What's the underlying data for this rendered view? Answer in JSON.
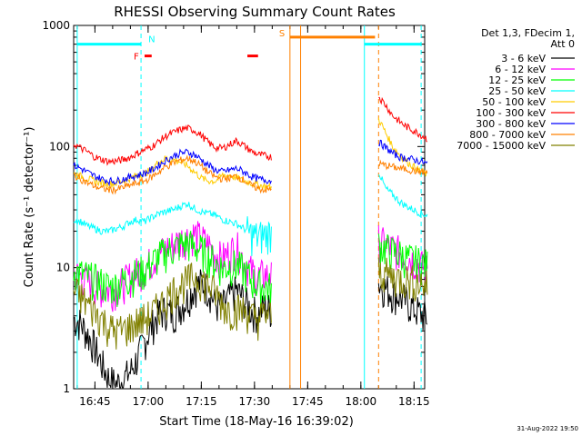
{
  "chart_data": {
    "type": "line",
    "title": "RHESSI Observing Summary Count Rates",
    "xlabel": "Start Time (18-May-16 16:39:02)",
    "ylabel": "Count Rate (s⁻¹ detector⁻¹)",
    "yscale": "log",
    "ylim": [
      1,
      1000
    ],
    "xlim": [
      "16:39",
      "18:18"
    ],
    "x_ticks": [
      "16:45",
      "17:00",
      "17:15",
      "17:30",
      "17:45",
      "18:00",
      "18:15"
    ],
    "y_ticks": [
      "1",
      "10",
      "100",
      "1000"
    ],
    "grid": false,
    "legend_position": "right",
    "legend_header": [
      "Det 1,3, FDecim 1,",
      "Att 0"
    ],
    "x_minutes": [
      39,
      41,
      43,
      45,
      47,
      49,
      51,
      53,
      55,
      57,
      59,
      61,
      63,
      65,
      67,
      69,
      71,
      73,
      75,
      77,
      79,
      81,
      83,
      85,
      87,
      89,
      91,
      93,
      95,
      97,
      99,
      101,
      103,
      105,
      107,
      109,
      111,
      113,
      115,
      117,
      119,
      121,
      123,
      125,
      127,
      129,
      131,
      133,
      135,
      137,
      139
    ],
    "series": [
      {
        "name": "3 - 6 keV",
        "color": "#000000",
        "values": [
          3.8,
          3.5,
          2.8,
          2.2,
          1.6,
          1.2,
          1.1,
          1.2,
          1.4,
          1.8,
          2.5,
          3.3,
          4.2,
          4.5,
          4.2,
          4.8,
          5.5,
          7.0,
          7.5,
          6.8,
          5.0,
          4.8,
          5.8,
          6.5,
          5.5,
          4.5,
          4.2,
          4.8,
          4.5,
          null,
          null,
          null,
          null,
          null,
          null,
          null,
          null,
          null,
          null,
          null,
          null,
          null,
          null,
          7.5,
          6.8,
          6.2,
          5.8,
          5.2,
          4.6,
          4.2,
          3.8
        ]
      },
      {
        "name": "6 - 12 keV",
        "color": "#ff00ff",
        "values": [
          9.0,
          8.5,
          7.8,
          7.2,
          6.8,
          6.5,
          6.8,
          7.5,
          8.5,
          9.2,
          10.0,
          11.5,
          13.0,
          14.5,
          15.5,
          17.0,
          18.0,
          19.0,
          17.5,
          15.5,
          13.0,
          12.0,
          13.5,
          15.0,
          11.5,
          9.5,
          8.5,
          8.8,
          8.5,
          null,
          null,
          null,
          null,
          null,
          null,
          null,
          null,
          null,
          null,
          null,
          null,
          null,
          null,
          17.0,
          15.5,
          14.5,
          13.5,
          12.5,
          11.5,
          10.5,
          9.5
        ]
      },
      {
        "name": "12 - 25 keV",
        "color": "#00ff00",
        "values": [
          9.5,
          9.0,
          8.5,
          8.0,
          7.5,
          7.0,
          7.2,
          7.8,
          8.5,
          9.0,
          9.5,
          11.0,
          12.5,
          13.5,
          14.5,
          15.5,
          16.0,
          15.0,
          14.0,
          12.5,
          11.0,
          10.0,
          10.5,
          10.5,
          9.5,
          8.0,
          7.2,
          7.0,
          6.8,
          null,
          null,
          null,
          null,
          null,
          null,
          null,
          null,
          null,
          null,
          null,
          null,
          null,
          null,
          15.5,
          14.5,
          13.5,
          13.0,
          12.0,
          11.5,
          11.0,
          10.5
        ]
      },
      {
        "name": "25 - 50 keV",
        "color": "#00ffff",
        "values": [
          25,
          24,
          22,
          21,
          20,
          20,
          21,
          22,
          24,
          25,
          24,
          26,
          28,
          29,
          30,
          32,
          34,
          31,
          29,
          28,
          27,
          25,
          24,
          23,
          21,
          19,
          18,
          19,
          20,
          null,
          null,
          null,
          null,
          null,
          null,
          null,
          null,
          null,
          null,
          null,
          null,
          null,
          null,
          62,
          45,
          40,
          35,
          32,
          30,
          28,
          27
        ]
      },
      {
        "name": "50 - 100 keV",
        "color": "#ffcc00",
        "values": [
          60,
          57,
          54,
          52,
          50,
          49,
          50,
          52,
          55,
          58,
          60,
          65,
          75,
          80,
          78,
          75,
          70,
          62,
          55,
          52,
          52,
          58,
          58,
          55,
          52,
          50,
          48,
          47,
          46,
          null,
          null,
          null,
          null,
          null,
          null,
          null,
          null,
          null,
          null,
          null,
          null,
          null,
          null,
          170,
          130,
          100,
          85,
          75,
          68,
          62,
          58
        ]
      },
      {
        "name": "100 - 300 keV",
        "color": "#ff0000",
        "values": [
          105,
          97,
          90,
          82,
          78,
          75,
          76,
          78,
          82,
          88,
          94,
          100,
          110,
          122,
          130,
          138,
          142,
          136,
          124,
          108,
          98,
          97,
          104,
          112,
          102,
          92,
          86,
          84,
          82,
          null,
          null,
          null,
          null,
          null,
          null,
          null,
          null,
          null,
          null,
          null,
          null,
          null,
          null,
          260,
          220,
          180,
          160,
          145,
          135,
          125,
          115
        ]
      },
      {
        "name": "300 - 800 keV",
        "color": "#0000ff",
        "values": [
          70,
          66,
          61,
          57,
          54,
          52,
          52,
          54,
          56,
          58,
          60,
          64,
          70,
          77,
          83,
          88,
          90,
          86,
          78,
          70,
          64,
          62,
          64,
          66,
          62,
          57,
          54,
          53,
          52,
          null,
          null,
          null,
          null,
          null,
          null,
          null,
          null,
          null,
          null,
          null,
          null,
          null,
          null,
          110,
          98,
          88,
          82,
          80,
          78,
          75,
          72
        ]
      },
      {
        "name": "800 - 7000 keV",
        "color": "#ff8000",
        "values": [
          58,
          54,
          50,
          47,
          45,
          44,
          44,
          46,
          48,
          50,
          52,
          56,
          62,
          68,
          73,
          77,
          80,
          76,
          69,
          61,
          56,
          54,
          55,
          57,
          53,
          48,
          45,
          44,
          44,
          null,
          null,
          null,
          null,
          null,
          null,
          null,
          null,
          null,
          null,
          null,
          null,
          null,
          null,
          72,
          70,
          68,
          66,
          65,
          63,
          62,
          60
        ]
      },
      {
        "name": "7000 - 15000 keV",
        "color": "#808000",
        "values": [
          6.5,
          5.8,
          5.0,
          4.4,
          3.8,
          3.2,
          3.0,
          3.1,
          3.3,
          3.6,
          3.8,
          4.2,
          4.8,
          5.5,
          6.5,
          7.2,
          7.8,
          8.5,
          8.0,
          7.2,
          6.2,
          5.0,
          4.5,
          4.6,
          4.5,
          4.0,
          3.8,
          4.2,
          4.0,
          null,
          null,
          null,
          null,
          null,
          null,
          null,
          null,
          null,
          null,
          null,
          null,
          null,
          null,
          9.5,
          9.0,
          8.5,
          8.2,
          8.0,
          7.8,
          7.5,
          7.0
        ]
      }
    ],
    "annotations": {
      "flags": [
        {
          "label": "F",
          "color": "#ff0000"
        },
        {
          "label": "N",
          "color": "#00ffff"
        },
        {
          "label": "S",
          "color": "#ff8000"
        }
      ],
      "flag_bars": [
        {
          "flag": "N",
          "color": "#00ffff",
          "x_start": 40,
          "x_end": 58,
          "level": 700
        },
        {
          "flag": "F",
          "color": "#ff0000",
          "x_start": 59,
          "x_end": 61,
          "level": 560
        },
        {
          "flag": "F",
          "color": "#ff0000",
          "x_start": 88,
          "x_end": 91,
          "level": 560
        },
        {
          "flag": "S",
          "color": "#ff8000",
          "x_start": 100,
          "x_end": 124,
          "level": 800
        },
        {
          "flag": "N",
          "color": "#00ffff",
          "x_start": 121,
          "x_end": 137,
          "level": 700
        }
      ],
      "vlines": [
        {
          "x": 40,
          "color": "#00ffff",
          "dashed": false
        },
        {
          "x": 58,
          "color": "#00ffff",
          "dashed": true
        },
        {
          "x": 100,
          "color": "#ff8000",
          "dashed": false
        },
        {
          "x": 103,
          "color": "#ff8000",
          "dashed": false
        },
        {
          "x": 121,
          "color": "#00ffff",
          "dashed": false
        },
        {
          "x": 125,
          "color": "#ff8000",
          "dashed": true
        },
        {
          "x": 137,
          "color": "#00ffff",
          "dashed": true
        }
      ]
    }
  },
  "footer": {
    "timestamp": "31-Aug-2022 19:50"
  }
}
